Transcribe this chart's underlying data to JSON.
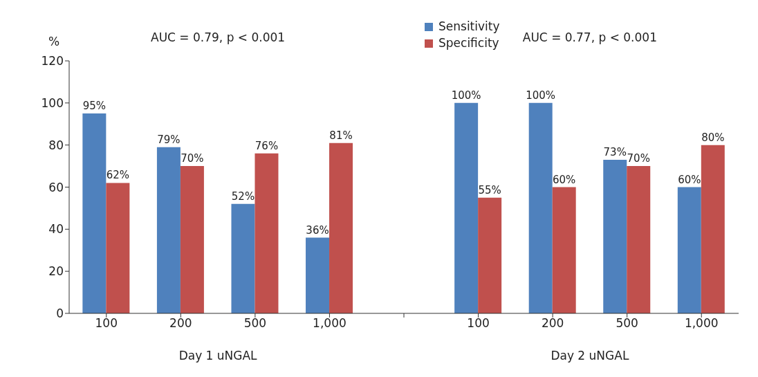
{
  "chart_data": {
    "type": "bar",
    "ylabel": "%",
    "categories": [
      "100",
      "200",
      "500",
      "1,000",
      null,
      "100",
      "200",
      "500",
      "1,000"
    ],
    "series": [
      {
        "name": "Sensitivity",
        "color": "#4f81bd",
        "values": [
          95,
          79,
          52,
          36,
          null,
          100,
          100,
          73,
          60
        ],
        "value_labels": [
          "95%",
          "79%",
          "52%",
          "36%",
          null,
          "100%",
          "100%",
          "73%",
          "60%"
        ]
      },
      {
        "name": "Specificity",
        "color": "#c0504d",
        "values": [
          62,
          70,
          76,
          81,
          null,
          55,
          60,
          70,
          80
        ],
        "value_labels": [
          "62%",
          "70%",
          "76%",
          "81%",
          null,
          "55%",
          "60%",
          "70%",
          "80%"
        ]
      }
    ],
    "ylim": [
      0,
      120
    ],
    "yticks": [
      0,
      20,
      40,
      60,
      80,
      100,
      120
    ],
    "grid": false,
    "legend": "top",
    "annotations": [
      "AUC = 0.79, p < 0.001",
      "AUC = 0.77, p < 0.001",
      "Day 1 uNGAL",
      "Day 2 uNGAL"
    ]
  }
}
